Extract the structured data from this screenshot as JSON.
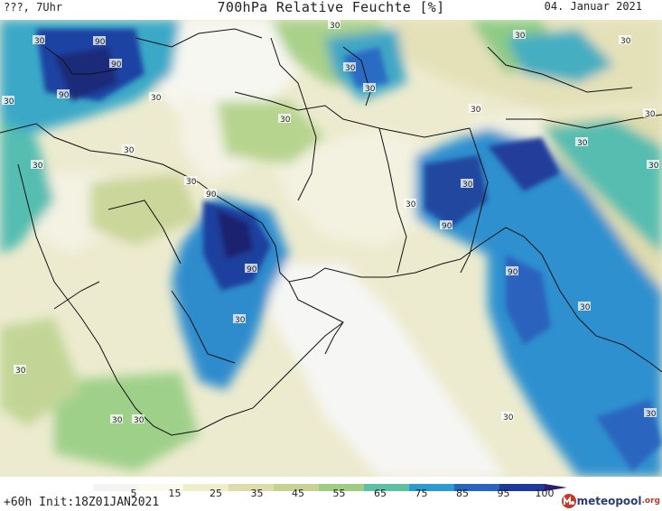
{
  "header": {
    "left": "???, 7Uhr",
    "title": "700hPa Relative Feuchte [%]",
    "date": "04. Januar 2021"
  },
  "footer": {
    "init": "+60h Init:18Z01JAN2021",
    "brand_main": "meteopool",
    "brand_suffix": ".org"
  },
  "colorbar": {
    "ticks": [
      "5",
      "15",
      "25",
      "35",
      "45",
      "55",
      "65",
      "75",
      "85",
      "95",
      "100"
    ],
    "colors": [
      "#f4f4f2",
      "#fbfbec",
      "#eeeecb",
      "#dedcaa",
      "#c6d193",
      "#9fce83",
      "#5cc1a3",
      "#2b9bd0",
      "#2765c1",
      "#1d3a9b",
      "#2a1f6e"
    ]
  },
  "map_labels": {
    "high": "90",
    "low": "30"
  }
}
